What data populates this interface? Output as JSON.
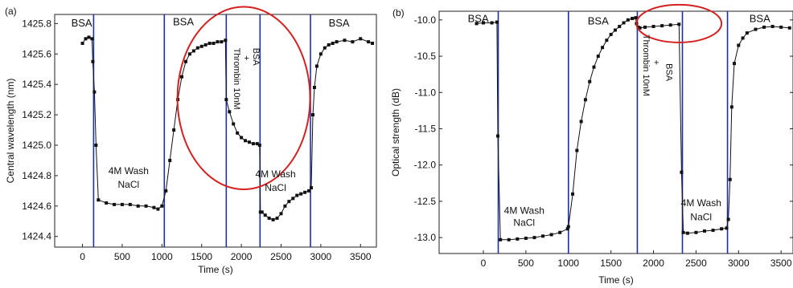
{
  "chart_data": [
    {
      "type": "scatter",
      "panel_label": "(a)",
      "xlabel": "Time (s)",
      "ylabel": "Central wavelength (nm)",
      "xlim": [
        -350,
        3700
      ],
      "ylim": [
        1424.33,
        1425.86
      ],
      "xticks": [
        0,
        500,
        1000,
        1500,
        2000,
        2500,
        3000,
        3500
      ],
      "yticks": [
        1424.4,
        1424.6,
        1424.8,
        1425.0,
        1425.2,
        1425.4,
        1425.6,
        1425.8
      ],
      "grid": false,
      "colors": {
        "data": "#111111",
        "markers": "#1f2fa6",
        "highlight": "#d42020"
      },
      "segment_markers_x": [
        140,
        1030,
        1810,
        2235,
        2870
      ],
      "series": [
        {
          "x": [
            0,
            40,
            80,
            120,
            130,
            150,
            170,
            200,
            300,
            400,
            500,
            600,
            700,
            800,
            900,
            950,
            1000,
            1050,
            1100,
            1150,
            1200,
            1250,
            1300,
            1350,
            1400,
            1450,
            1500,
            1550,
            1600,
            1650,
            1700,
            1750,
            1800,
            1810,
            1850,
            1900,
            1950,
            2000,
            2050,
            2100,
            2150,
            2200,
            2230,
            2240,
            2260,
            2300,
            2350,
            2400,
            2450,
            2500,
            2550,
            2600,
            2650,
            2700,
            2750,
            2800,
            2850,
            2880,
            2900,
            2920,
            2950,
            3000,
            3050,
            3100,
            3150,
            3200,
            3300,
            3400,
            3500,
            3600,
            3650
          ],
          "y": [
            1425.67,
            1425.7,
            1425.71,
            1425.7,
            1425.55,
            1425.35,
            1425.0,
            1424.64,
            1424.62,
            1424.61,
            1424.61,
            1424.61,
            1424.6,
            1424.6,
            1424.59,
            1424.58,
            1424.6,
            1424.7,
            1424.9,
            1425.1,
            1425.3,
            1425.45,
            1425.55,
            1425.6,
            1425.62,
            1425.64,
            1425.65,
            1425.66,
            1425.67,
            1425.67,
            1425.68,
            1425.68,
            1425.69,
            1425.3,
            1425.22,
            1425.14,
            1425.08,
            1425.05,
            1425.03,
            1425.02,
            1425.01,
            1425.01,
            1425.0,
            1424.56,
            1424.56,
            1424.54,
            1424.52,
            1424.51,
            1424.52,
            1424.55,
            1424.6,
            1424.63,
            1424.65,
            1424.67,
            1424.68,
            1424.69,
            1424.7,
            1424.72,
            1425.2,
            1425.38,
            1425.52,
            1425.6,
            1425.64,
            1425.66,
            1425.67,
            1425.68,
            1425.69,
            1425.68,
            1425.7,
            1425.68,
            1425.67
          ]
        }
      ],
      "annotations": [
        {
          "text": "BSA",
          "x": -10,
          "y": 1425.78
        },
        {
          "text": "BSA",
          "x": 1270,
          "y": 1425.79
        },
        {
          "text": "BSA",
          "x": 3230,
          "y": 1425.78
        },
        {
          "text": "4M Wash",
          "x": 580,
          "y": 1424.81
        },
        {
          "text": "NaCl",
          "x": 580,
          "y": 1424.72
        },
        {
          "text": "4M Wash",
          "x": 2430,
          "y": 1424.79
        },
        {
          "text": "NaCl",
          "x": 2430,
          "y": 1424.7
        }
      ],
      "rotated_annotations": [
        {
          "text": "Thrombin 10nM",
          "x": 1910,
          "y": 1425.64
        },
        {
          "text": "BSA",
          "x": 2150,
          "y": 1425.64
        },
        {
          "text": "+",
          "x": 2030,
          "y": 1425.59
        }
      ],
      "ellipse": {
        "cx": 2030,
        "cy": 1425.31,
        "rx": 1670,
        "ry": 0.6
      }
    },
    {
      "type": "scatter",
      "panel_label": "(b)",
      "xlabel": "Time (s)",
      "ylabel": "Optical strength (dB)",
      "xlim": [
        -520,
        3640
      ],
      "ylim": [
        -13.22,
        -9.88
      ],
      "xticks": [
        0,
        500,
        1000,
        1500,
        2000,
        2500,
        3000,
        3500
      ],
      "yticks": [
        -10.0,
        -10.5,
        -11.0,
        -11.5,
        -12.0,
        -12.5,
        -13.0
      ],
      "grid": false,
      "colors": {
        "data": "#111111",
        "markers": "#1f2fa6",
        "highlight": "#d42020"
      },
      "segment_markers_x": [
        175,
        1000,
        1810,
        2340,
        2870
      ],
      "series": [
        {
          "x": [
            -80,
            0,
            100,
            160,
            170,
            200,
            300,
            400,
            500,
            600,
            700,
            800,
            900,
            990,
            1000,
            1050,
            1100,
            1150,
            1200,
            1250,
            1300,
            1350,
            1400,
            1450,
            1500,
            1550,
            1600,
            1650,
            1700,
            1750,
            1790,
            1800,
            1820,
            1840,
            1900,
            2000,
            2100,
            2200,
            2300,
            2330,
            2350,
            2400,
            2500,
            2600,
            2700,
            2800,
            2860,
            2880,
            2900,
            2920,
            2950,
            3000,
            3050,
            3100,
            3200,
            3300,
            3400,
            3500,
            3600
          ],
          "y": [
            -10.05,
            -10.04,
            -10.04,
            -10.03,
            -11.6,
            -13.03,
            -13.03,
            -13.02,
            -13.01,
            -13.0,
            -12.98,
            -12.96,
            -12.93,
            -12.88,
            -12.85,
            -12.4,
            -11.8,
            -11.4,
            -11.1,
            -10.85,
            -10.65,
            -10.5,
            -10.38,
            -10.28,
            -10.2,
            -10.14,
            -10.09,
            -10.04,
            -10.0,
            -9.98,
            -9.97,
            -10.05,
            -10.1,
            -10.11,
            -10.1,
            -10.09,
            -10.08,
            -10.07,
            -10.06,
            -12.1,
            -12.93,
            -12.94,
            -12.93,
            -12.91,
            -12.9,
            -12.88,
            -12.87,
            -12.75,
            -12.2,
            -11.2,
            -10.6,
            -10.35,
            -10.25,
            -10.18,
            -10.13,
            -10.1,
            -10.09,
            -10.1,
            -10.11
          ]
        }
      ],
      "annotations": [
        {
          "text": "BSA",
          "x": -60,
          "y": -10.03
        },
        {
          "text": "BSA",
          "x": 1350,
          "y": -10.06
        },
        {
          "text": "BSA",
          "x": 3250,
          "y": -10.03
        },
        {
          "text": "4M Wash",
          "x": 480,
          "y": -12.67
        },
        {
          "text": "NaCl",
          "x": 480,
          "y": -12.84
        },
        {
          "text": "4M Wash",
          "x": 2560,
          "y": -12.57
        },
        {
          "text": "NaCl",
          "x": 2560,
          "y": -12.76
        }
      ],
      "rotated_annotations": [
        {
          "text": "Thrombin 10nM",
          "x": 1880,
          "y": -10.2
        },
        {
          "text": "BSA",
          "x": 2150,
          "y": -10.6
        },
        {
          "text": "+",
          "x": 2000,
          "y": -10.55
        }
      ],
      "ellipse": {
        "cx": 2300,
        "cy": -10.05,
        "rx": 1000,
        "ry": 0.26
      }
    }
  ]
}
